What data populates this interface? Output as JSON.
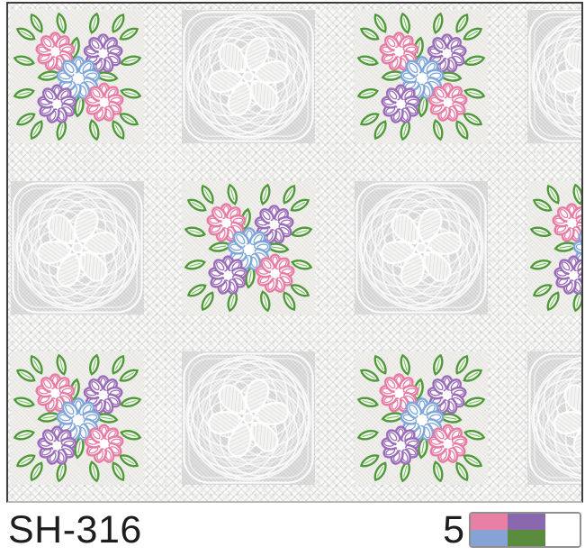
{
  "product": {
    "code": "SH-316",
    "variant_number": "5"
  },
  "palette": [
    {
      "name": "pink",
      "hex": "#e87fa5"
    },
    {
      "name": "purple",
      "hex": "#8a68ae"
    },
    {
      "name": "blue",
      "hex": "#87a2d5"
    },
    {
      "name": "green",
      "hex": "#5b8c3e"
    },
    {
      "name": "white",
      "hex": "#ffffff"
    }
  ],
  "pattern": {
    "type": "lace-floral-checkerboard",
    "grid": [
      [
        "floral",
        "lace",
        "floral",
        "lace"
      ],
      [
        "lace",
        "floral",
        "lace",
        "floral"
      ],
      [
        "floral",
        "lace",
        "floral",
        "lace"
      ]
    ],
    "flower_colors": {
      "pink": "#e87ba4",
      "purple": "#9a6cb8",
      "blue": "#7fa6da",
      "green": "#4f9a38"
    },
    "lace_color": "#ffffff",
    "lace_background": "#d8d8d8",
    "floral_background": "#ecebe8"
  }
}
